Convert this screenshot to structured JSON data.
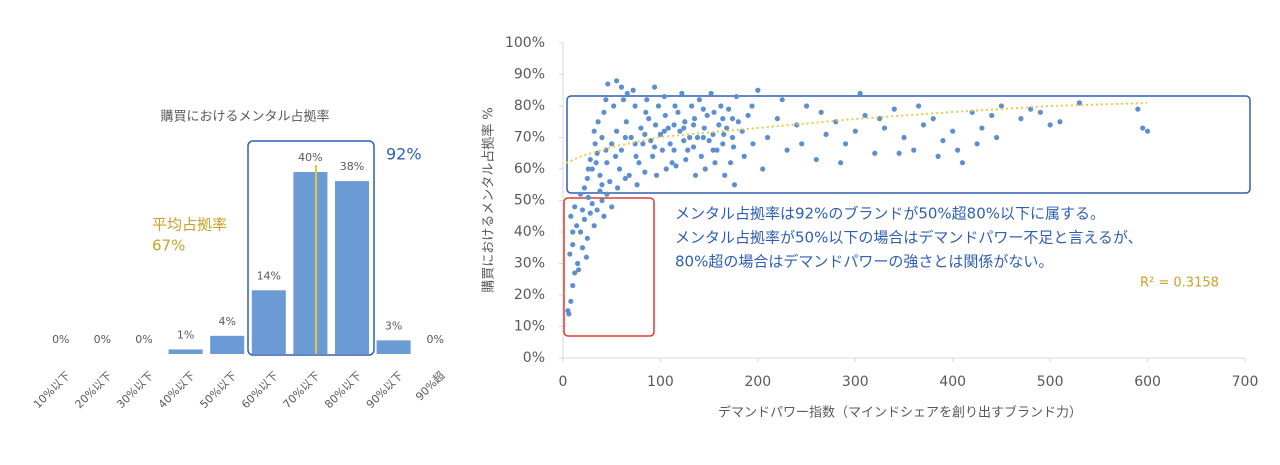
{
  "chart_data": [
    {
      "type": "bar",
      "title": "購買におけるメンタル占拠率",
      "categories": [
        "10%以下",
        "20%以下",
        "30%以下",
        "40%以下",
        "50%以下",
        "60%以下",
        "70%以下",
        "80%以下",
        "90%以下",
        "90%超"
      ],
      "values": [
        0,
        0,
        0,
        1,
        4,
        14,
        40,
        38,
        3,
        0
      ],
      "value_labels": [
        "0%",
        "0%",
        "0%",
        "1%",
        "4%",
        "14%",
        "40%",
        "38%",
        "3%",
        "0%"
      ],
      "color": "#6a9bd5",
      "annotations": {
        "mean_label": "平均占拠率",
        "mean_value": "67%",
        "group_total": "92%"
      }
    },
    {
      "type": "scatter",
      "xlabel": "デマンドパワー指数（マインドシェアを創り出すブランド力）",
      "ylabel": "購買におけるメンタル占拠率 %",
      "xlim": [
        0,
        700
      ],
      "ylim": [
        0,
        100
      ],
      "xticks": [
        0,
        100,
        200,
        300,
        400,
        500,
        600,
        700
      ],
      "yticks": [
        {
          "value": 0,
          "label": "0%"
        },
        {
          "value": 10,
          "label": "10%"
        },
        {
          "value": 20,
          "label": "20%"
        },
        {
          "value": 30,
          "label": "30%"
        },
        {
          "value": 40,
          "label": "40%"
        },
        {
          "value": 50,
          "label": "50%"
        },
        {
          "value": 60,
          "label": "60%"
        },
        {
          "value": 70,
          "label": "70%"
        },
        {
          "value": 80,
          "label": "80%"
        },
        {
          "value": 90,
          "label": "90%"
        },
        {
          "value": 100,
          "label": "100%"
        }
      ],
      "series": [
        {
          "color": "#5b8fd0",
          "x": [
            5,
            6,
            8,
            10,
            7,
            12,
            15,
            10,
            18,
            20,
            14,
            22,
            25,
            28,
            12,
            30,
            35,
            18,
            40,
            8,
            16,
            24,
            32,
            20,
            26,
            10,
            42,
            38,
            45,
            50,
            30,
            35,
            40,
            45,
            50,
            55,
            60,
            65,
            70,
            75,
            80,
            85,
            90,
            95,
            100,
            105,
            110,
            115,
            120,
            125,
            130,
            135,
            140,
            145,
            150,
            155,
            160,
            165,
            170,
            175,
            180,
            32,
            38,
            42,
            48,
            52,
            58,
            62,
            68,
            72,
            78,
            82,
            88,
            92,
            98,
            102,
            108,
            112,
            118,
            122,
            128,
            132,
            138,
            142,
            148,
            152,
            158,
            162,
            168,
            172,
            178,
            25,
            28,
            33,
            36,
            44,
            46,
            55,
            60,
            66,
            74,
            86,
            94,
            104,
            114,
            124,
            134,
            144,
            154,
            164,
            174,
            184,
            190,
            195,
            40,
            56,
            64,
            76,
            84,
            96,
            106,
            116,
            126,
            136,
            146,
            156,
            166,
            176,
            186,
            22,
            26,
            34,
            44,
            54,
            64,
            74,
            84,
            94,
            104,
            114,
            124,
            134,
            144,
            154,
            164,
            174,
            194,
            200,
            210,
            220,
            230,
            240,
            250,
            260,
            270,
            280,
            290,
            300,
            310,
            320,
            330,
            340,
            350,
            360,
            370,
            380,
            390,
            400,
            410,
            420,
            430,
            440,
            450,
            470,
            480,
            500,
            510,
            530,
            590,
            600,
            595,
            205,
            225,
            245,
            265,
            285,
            305,
            325,
            345,
            365,
            385,
            405,
            425,
            445,
            490
          ],
          "values": [
            15,
            14,
            18,
            23,
            33,
            27,
            30,
            36,
            40,
            35,
            42,
            44,
            38,
            46,
            48,
            49,
            47,
            52,
            50,
            45,
            28,
            32,
            42,
            47,
            51,
            40,
            45,
            53,
            52,
            48,
            60,
            65,
            70,
            62,
            68,
            72,
            66,
            75,
            70,
            64,
            73,
            78,
            69,
            74,
            71,
            77,
            68,
            80,
            72,
            75,
            70,
            76,
            82,
            73,
            69,
            78,
            74,
            71,
            79,
            67,
            75,
            72,
            58,
            78,
            56,
            80,
            60,
            82,
            58,
            85,
            62,
            68,
            76,
            64,
            80,
            66,
            73,
            62,
            78,
            84,
            66,
            80,
            70,
            64,
            77,
            84,
            66,
            80,
            73,
            62,
            83,
            57,
            63,
            68,
            75,
            82,
            87,
            88,
            86,
            84,
            80,
            82,
            86,
            83,
            74,
            69,
            74,
            79,
            71,
            76,
            70,
            72,
            77,
            68,
            55,
            54,
            57,
            55,
            59,
            58,
            60,
            61,
            63,
            58,
            60,
            62,
            58,
            55,
            64,
            54,
            60,
            62,
            66,
            64,
            70,
            68,
            71,
            67,
            72,
            66,
            73,
            67,
            70,
            66,
            68,
            76,
            80,
            85,
            70,
            76,
            66,
            74,
            80,
            63,
            71,
            75,
            68,
            72,
            77,
            65,
            73,
            79,
            70,
            66,
            74,
            76,
            69,
            72,
            62,
            78,
            73,
            77,
            80,
            76,
            79,
            74,
            75,
            81,
            79,
            72,
            73,
            60,
            82,
            68,
            78,
            62,
            84,
            76,
            65,
            80,
            64,
            66,
            68,
            70,
            78
          ]
        }
      ],
      "annotations": [
        "メンタル占拠率は92%のブランドが50%超80%以下に属する。",
        "メンタル占拠率が50%以下の場合はデマンドパワー不足と言えるが、",
        "80%超の場合はデマンドパワーの強さとは関係がない。"
      ],
      "r2": "R² = 0.3158"
    }
  ]
}
